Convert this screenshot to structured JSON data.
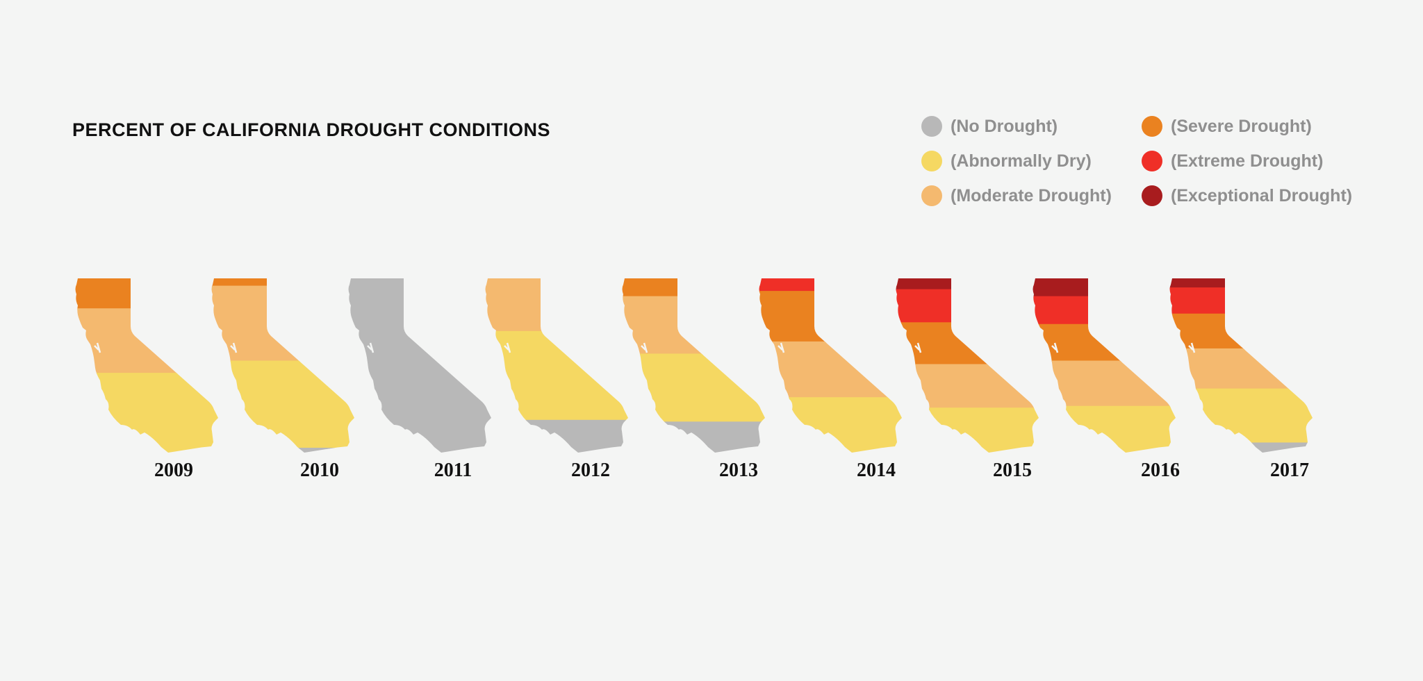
{
  "chart_data": {
    "type": "choropleth-small-multiples",
    "title": "PERCENT OF CALIFORNIA DROUGHT CONDITIONS",
    "legend": [
      {
        "key": "none",
        "label": "(No Drought)",
        "color": "#b8b8b8"
      },
      {
        "key": "dry",
        "label": "(Abnormally Dry)",
        "color": "#f5d862"
      },
      {
        "key": "moderate",
        "label": "(Moderate Drought)",
        "color": "#f4b96f"
      },
      {
        "key": "severe",
        "label": "(Severe Drought)",
        "color": "#ea8220"
      },
      {
        "key": "extreme",
        "label": "(Extreme Drought)",
        "color": "#ef2f27"
      },
      {
        "key": "exceptional",
        "label": "(Exceptional Drought)",
        "color": "#a81c1e"
      }
    ],
    "legend_placement": "top-right",
    "years": [
      {
        "label": "2009",
        "shares": {
          "exceptional": 0,
          "extreme": 0,
          "severe": 18,
          "moderate": 37,
          "dry": 45,
          "none": 0
        }
      },
      {
        "label": "2010",
        "shares": {
          "exceptional": 0,
          "extreme": 0,
          "severe": 5,
          "moderate": 43,
          "dry": 50,
          "none": 2
        }
      },
      {
        "label": "2011",
        "shares": {
          "exceptional": 0,
          "extreme": 0,
          "severe": 0,
          "moderate": 0,
          "dry": 0,
          "none": 100
        }
      },
      {
        "label": "2012",
        "shares": {
          "exceptional": 0,
          "extreme": 0,
          "severe": 0,
          "moderate": 31,
          "dry": 51,
          "none": 18
        }
      },
      {
        "label": "2013",
        "shares": {
          "exceptional": 0,
          "extreme": 0,
          "severe": 11,
          "moderate": 33,
          "dry": 39,
          "none": 17
        }
      },
      {
        "label": "2014",
        "shares": {
          "exceptional": 0,
          "extreme": 8,
          "severe": 29,
          "moderate": 32,
          "dry": 31,
          "none": 0
        }
      },
      {
        "label": "2015",
        "shares": {
          "exceptional": 7,
          "extreme": 19,
          "severe": 24,
          "moderate": 25,
          "dry": 25,
          "none": 0
        }
      },
      {
        "label": "2016",
        "shares": {
          "exceptional": 11,
          "extreme": 16,
          "severe": 21,
          "moderate": 26,
          "dry": 26,
          "none": 0
        }
      },
      {
        "label": "2017",
        "shares": {
          "exceptional": 6,
          "extreme": 15,
          "severe": 20,
          "moderate": 23,
          "dry": 31,
          "none": 5
        }
      }
    ]
  }
}
